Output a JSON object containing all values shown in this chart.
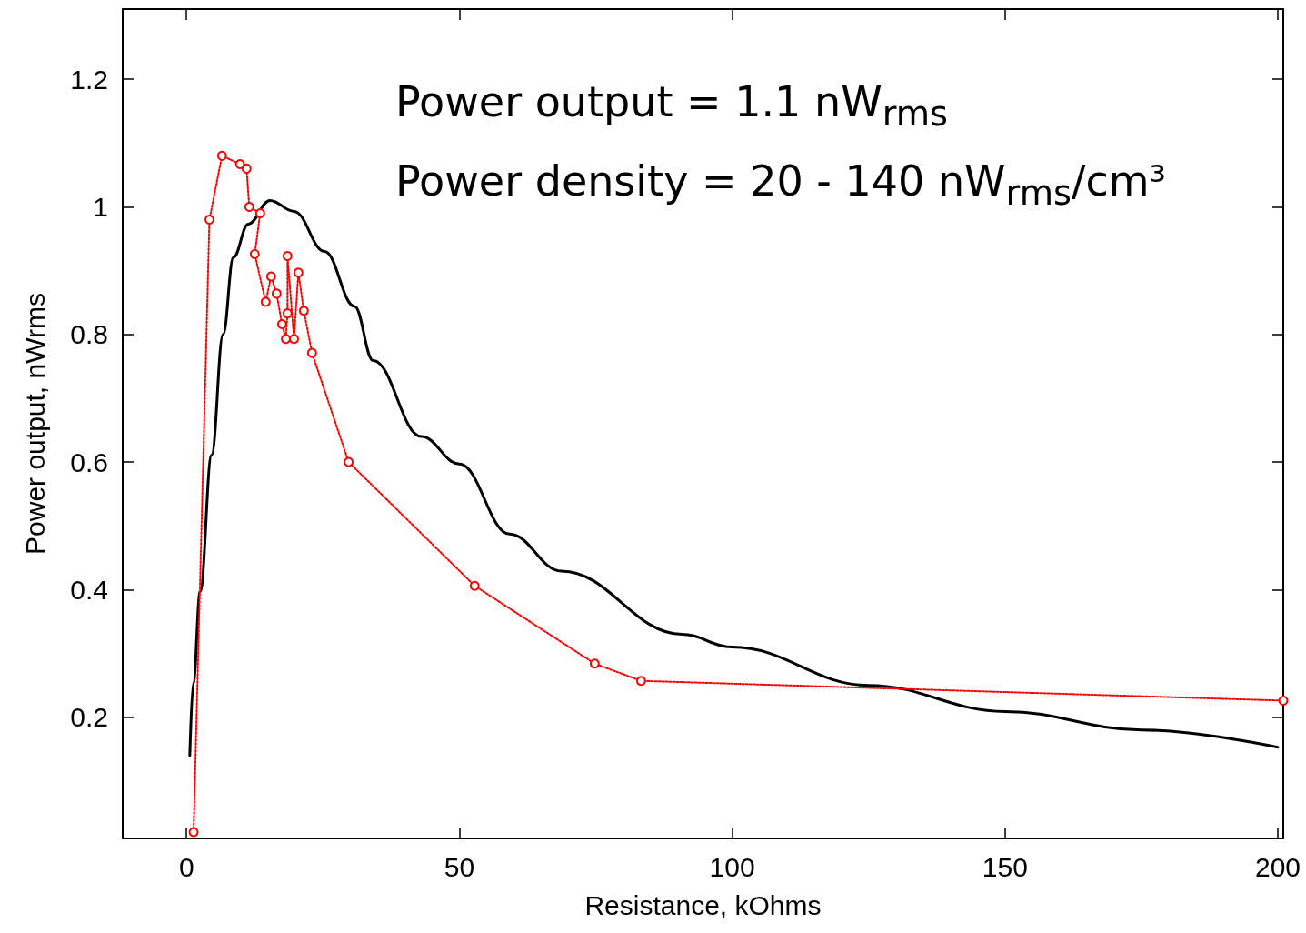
{
  "chart_data": {
    "type": "line",
    "xlabel": "Resistance, kOhms",
    "ylabel": "Power output, nWrms",
    "annotations": [
      "Power output = 1.1 nW$_{rms}$",
      "Power density = 20 - 140 nW$_{rms}$/cm³"
    ],
    "xlim": [
      -11.7,
      201
    ],
    "ylim": [
      0.01,
      1.31
    ],
    "xticks": [
      0,
      50,
      100,
      150,
      200
    ],
    "yticks": [
      0.2,
      0.4,
      0.6,
      0.8,
      1,
      1.2
    ],
    "grid": false,
    "series": [
      {
        "color": "#000000",
        "marker": "none",
        "line_style": "solid",
        "x": [
          0.6,
          1.25,
          2.5,
          4.6,
          6.7,
          8.6,
          11.3,
          15.3,
          19.7,
          25.3,
          30.8,
          34.2,
          43,
          50,
          59.2,
          68.7,
          90.8,
          100,
          125,
          150,
          175,
          200
        ],
        "values": [
          0.14,
          0.254,
          0.397,
          0.611,
          0.8,
          0.921,
          0.973,
          1.01,
          0.993,
          0.93,
          0.844,
          0.759,
          0.64,
          0.597,
          0.487,
          0.429,
          0.33,
          0.31,
          0.25,
          0.209,
          0.18,
          0.153
        ]
      },
      {
        "color": "#ff0000",
        "marker": "circle",
        "line_style": "dotted",
        "x": [
          1.3,
          4.2,
          6.5,
          9.8,
          11,
          11.5,
          13.5,
          12.5,
          14.5,
          15.5,
          16.5,
          17.5,
          18.2,
          18.5,
          18.5,
          19.7,
          20.5,
          21.5,
          23,
          29.7,
          52.8,
          74.8,
          83.3,
          201
        ],
        "values": [
          0.02,
          0.98,
          1.08,
          1.067,
          1.06,
          1.0,
          0.99,
          0.926,
          0.851,
          0.891,
          0.864,
          0.816,
          0.793,
          0.833,
          0.923,
          0.793,
          0.897,
          0.837,
          0.771,
          0.6,
          0.406,
          0.284,
          0.257,
          0.226
        ]
      }
    ]
  }
}
